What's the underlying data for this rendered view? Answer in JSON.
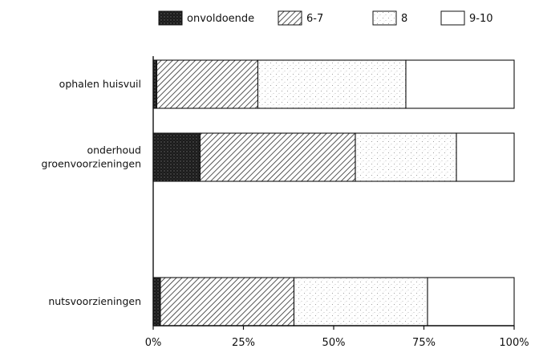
{
  "chart_data": {
    "type": "bar",
    "orientation": "horizontal",
    "stacked": true,
    "percent_stacked": true,
    "categories": [
      [
        "ophalen huisvuil"
      ],
      [
        "onderhoud",
        "groenvoorzieningen"
      ],
      [
        "nutsvoorzieningen"
      ]
    ],
    "series": [
      {
        "name": "onvoldoende",
        "values": [
          1,
          13,
          2
        ],
        "pattern": "dark-dots",
        "color": "#1a1a1a"
      },
      {
        "name": "6-7",
        "values": [
          28,
          43,
          37
        ],
        "pattern": "diagonal-hatch",
        "color": "#333333"
      },
      {
        "name": "8",
        "values": [
          41,
          28,
          37
        ],
        "pattern": "light-dots",
        "color": "#888888"
      },
      {
        "name": "9-10",
        "values": [
          30,
          16,
          24
        ],
        "pattern": "none",
        "color": "#ffffff"
      }
    ],
    "x_ticks": [
      "0%",
      "25%",
      "50%",
      "75%",
      "100%"
    ],
    "xlim": [
      0,
      100
    ],
    "legend_position": "top",
    "grid": false
  }
}
